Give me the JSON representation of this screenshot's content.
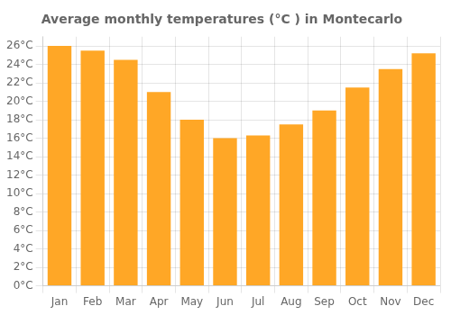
{
  "chart_data": {
    "type": "bar",
    "title": "Average monthly temperatures (°C ) in Montecarlo",
    "categories": [
      "Jan",
      "Feb",
      "Mar",
      "Apr",
      "May",
      "Jun",
      "Jul",
      "Aug",
      "Sep",
      "Oct",
      "Nov",
      "Dec"
    ],
    "values": [
      26.0,
      25.5,
      24.5,
      21.0,
      18.0,
      16.0,
      16.3,
      17.5,
      19.0,
      21.5,
      23.5,
      25.2
    ],
    "color": "#FFA726",
    "ylim": [
      0,
      27
    ],
    "yticks": [
      {
        "value": 0,
        "label": "0°C"
      },
      {
        "value": 2,
        "label": "2°C"
      },
      {
        "value": 4,
        "label": "4°C"
      },
      {
        "value": 6,
        "label": "6°C"
      },
      {
        "value": 8,
        "label": "8°C"
      },
      {
        "value": 10,
        "label": "10°C"
      },
      {
        "value": 12,
        "label": "12°C"
      },
      {
        "value": 14,
        "label": "14°C"
      },
      {
        "value": 16,
        "label": "16°C"
      },
      {
        "value": 18,
        "label": "18°C"
      },
      {
        "value": 20,
        "label": "20°C"
      },
      {
        "value": 22,
        "label": "22°C"
      },
      {
        "value": 24,
        "label": "24°C"
      },
      {
        "value": 26,
        "label": "26°C"
      }
    ],
    "grid": true
  }
}
